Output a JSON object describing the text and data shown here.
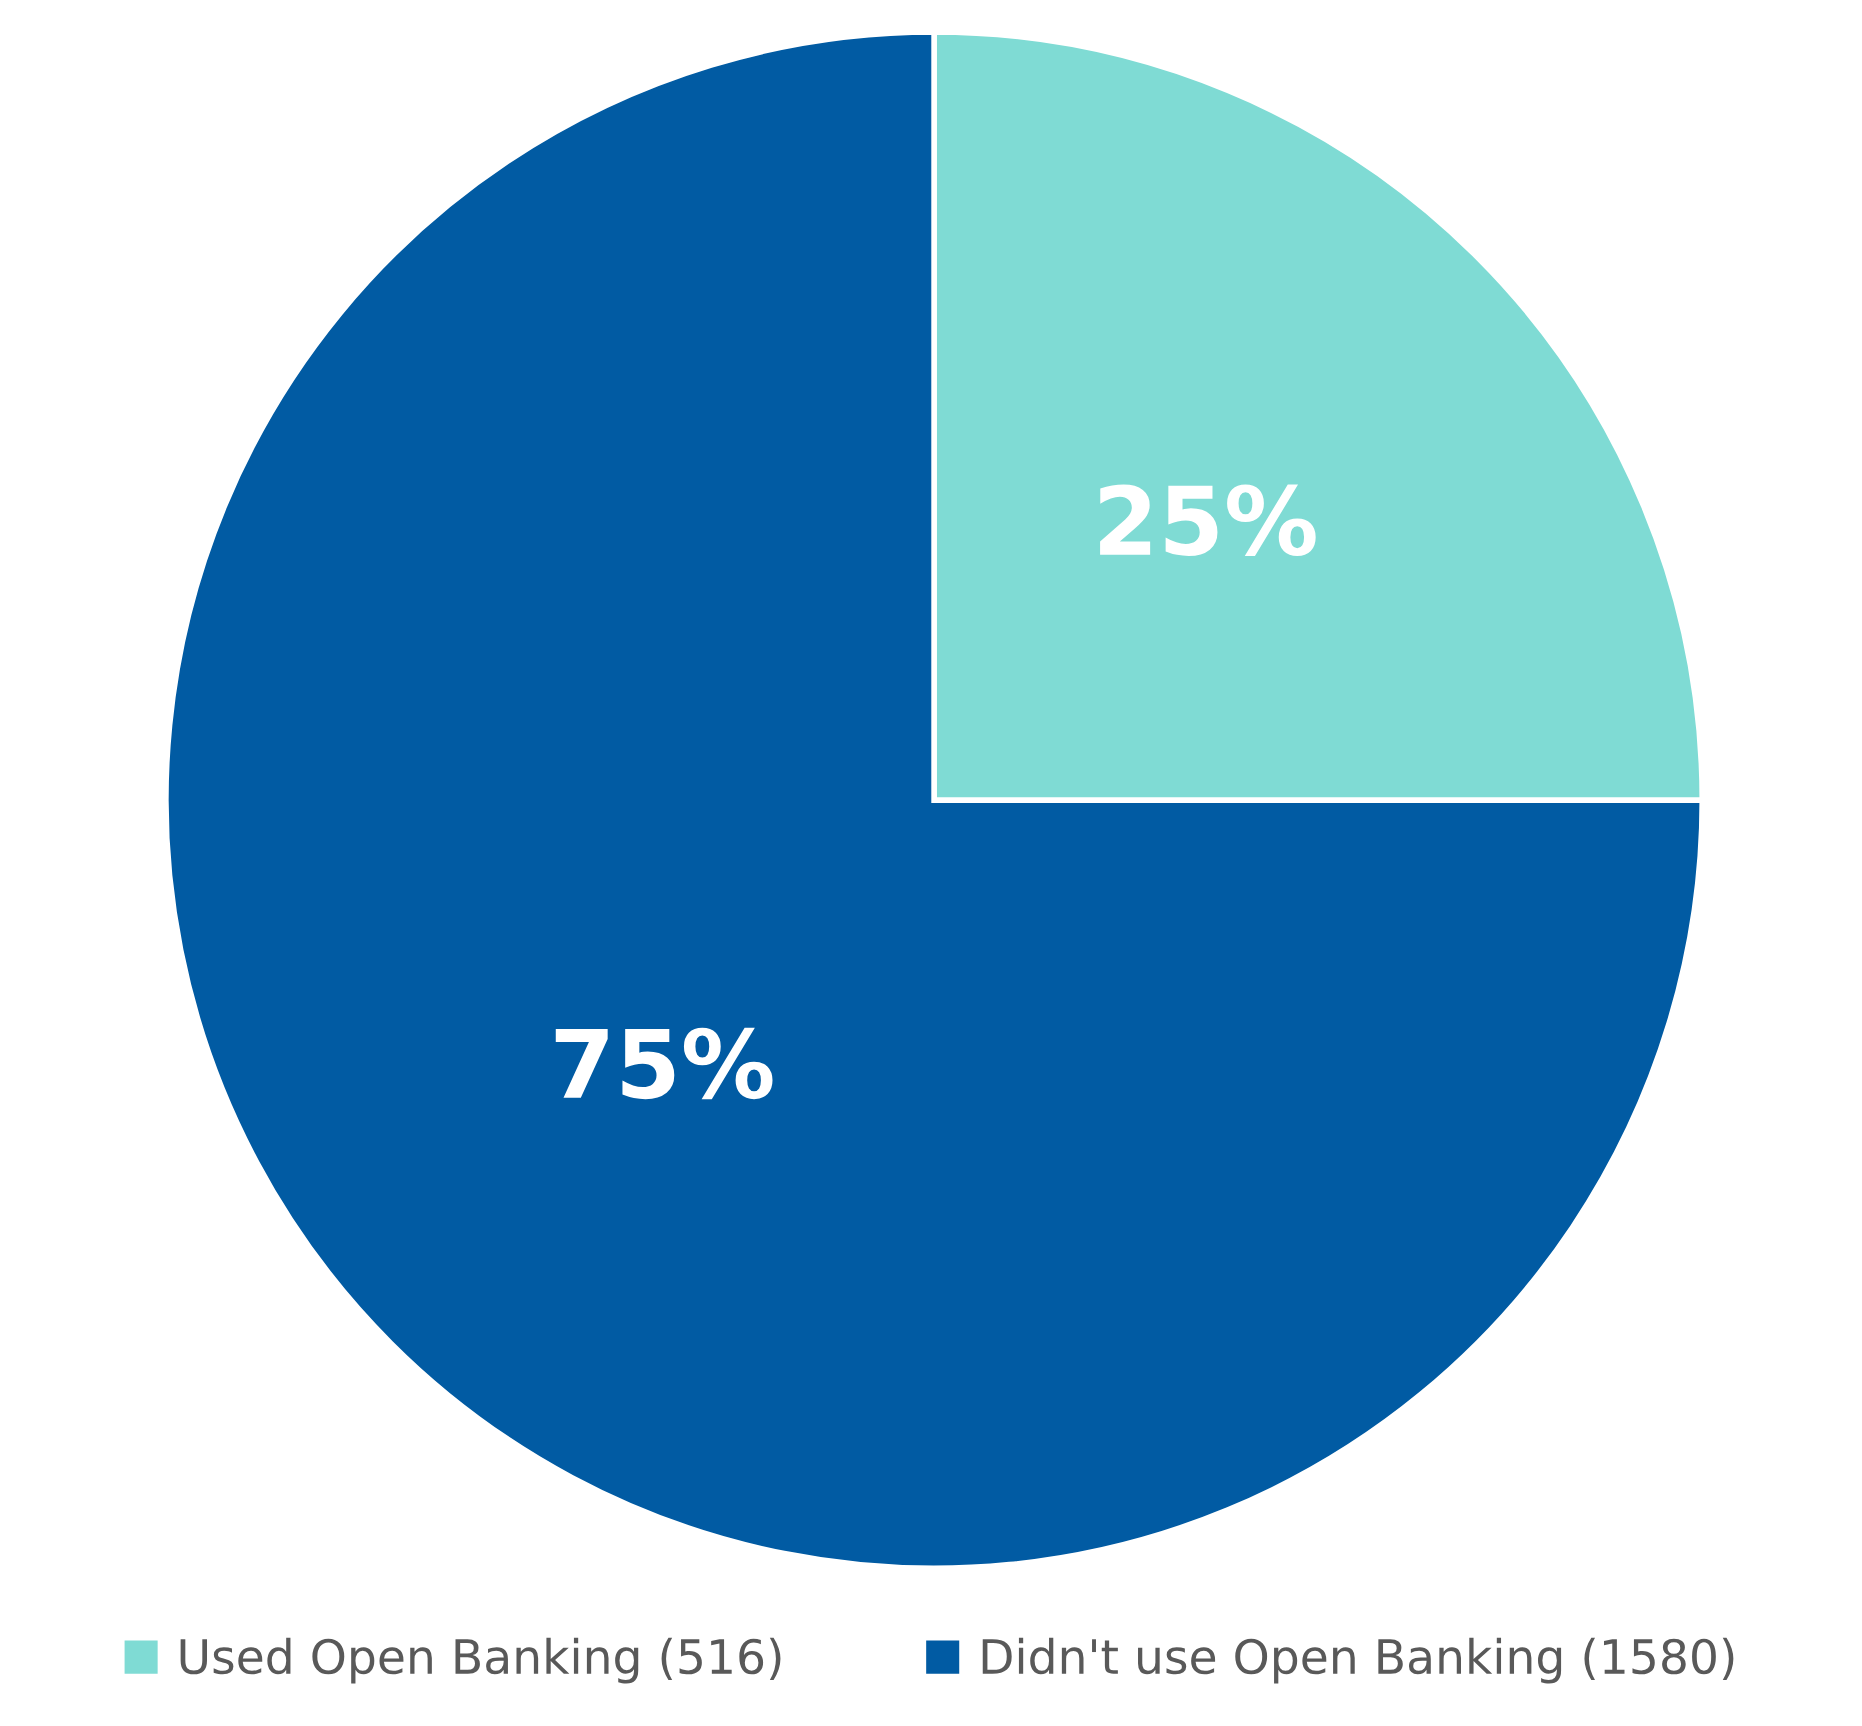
{
  "chart_data": {
    "type": "pie",
    "categories": [
      "Used Open Banking (516)",
      "Didn't use Open Banking (1580)"
    ],
    "values": [
      25,
      75
    ],
    "colors": [
      "#7fdbd4",
      "#015ba3"
    ],
    "value_labels": [
      "25%",
      "75%"
    ],
    "legend": "bottom"
  }
}
